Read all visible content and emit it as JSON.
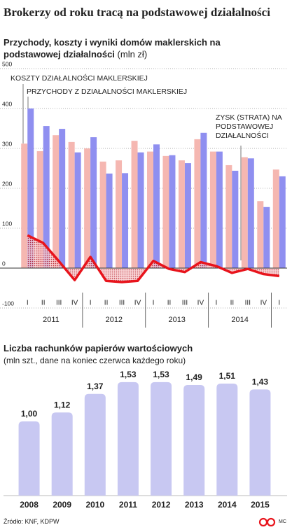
{
  "title": "Brokerzy od roku tracą na podstawowej działalności",
  "chart_data": [
    {
      "type": "bar",
      "subtitle": "Przychody, koszty i wyniki domów maklerskich na podstawowej działalności",
      "unit": "(mln zł)",
      "categories": [
        "I",
        "II",
        "III",
        "IV",
        "I",
        "II",
        "III",
        "IV",
        "I",
        "II",
        "III",
        "IV",
        "I",
        "II",
        "III",
        "IV",
        "I"
      ],
      "x_groups": [
        "2011",
        "2012",
        "2013",
        "2014"
      ],
      "ylim": [
        -100,
        500
      ],
      "yticks": [
        -100,
        0,
        100,
        200,
        300,
        400,
        500
      ],
      "grid": true,
      "series": [
        {
          "name": "KOSZTY DZIAŁALNOŚCI MAKLERSKIEJ",
          "color": "#f5b7b1",
          "values": [
            312,
            293,
            333,
            316,
            300,
            267,
            270,
            319,
            292,
            281,
            270,
            323,
            292,
            258,
            278,
            168,
            247
          ]
        },
        {
          "name": "PRZYCHODY Z DZIAŁALNOŚCI MAKLERSKIEJ",
          "color": "#8f8ff0",
          "values": [
            400,
            356,
            349,
            290,
            328,
            237,
            238,
            290,
            310,
            283,
            263,
            339,
            292,
            244,
            275,
            153,
            230
          ]
        },
        {
          "name": "ZYSK (STRATA) NA PODSTAWOWEJ DZIAŁALNOŚCI",
          "color": "#e8141c",
          "type": "line",
          "values": [
            82,
            63,
            17,
            -30,
            28,
            -32,
            -35,
            -32,
            18,
            -2,
            -10,
            15,
            5,
            -12,
            -2,
            -15,
            -20
          ]
        }
      ]
    },
    {
      "type": "bar",
      "title": "Liczba rachunków papierów wartościowych",
      "subtitle": "(mln szt., dane na koniec czerwca każdego roku)",
      "categories": [
        "2008",
        "2009",
        "2010",
        "2011",
        "2012",
        "2013",
        "2014",
        "2015"
      ],
      "values": [
        1.0,
        1.12,
        1.37,
        1.53,
        1.53,
        1.49,
        1.51,
        1.43
      ],
      "value_labels": [
        "1,00",
        "1,12",
        "1,37",
        "1,53",
        "1,53",
        "1,49",
        "1,51",
        "1,43"
      ],
      "color": "#c8c8f2"
    }
  ],
  "source": "Źródło: KNF, KDPW",
  "credit": "MC"
}
